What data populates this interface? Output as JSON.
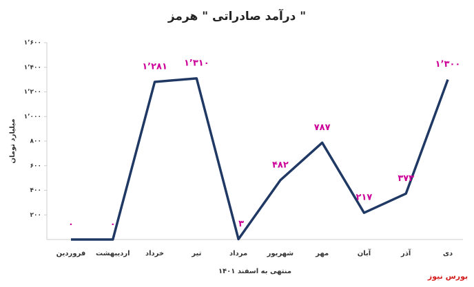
{
  "chart_data": {
    "type": "line",
    "title": "درآمد صادراتی \" هرمز \"",
    "y_label": "میلیارد تومان",
    "x_label": "منتهی به اسفند ۱۴۰۱",
    "source": "بورس نیوز",
    "categories": [
      "فروردین",
      "اردیبهشت",
      "خرداد",
      "تیر",
      "مرداد",
      "شهریور",
      "مهر",
      "آبان",
      "آذر",
      "دی"
    ],
    "series": [
      {
        "name": "درآمد صادراتی",
        "color": "#1f3864",
        "values": [
          0,
          0,
          1281,
          1310,
          3,
          482,
          787,
          217,
          373,
          1300
        ],
        "value_labels": [
          "۰",
          "۰",
          "۱٬۲۸۱",
          "۱٬۳۱۰",
          "۳",
          "۴۸۲",
          "۷۸۷",
          "۲۱۷",
          "۳۷۳",
          "۱٬۳۰۰"
        ]
      }
    ],
    "label_color": "#cc0099",
    "ylim": [
      0,
      1600
    ],
    "yticks": [
      {
        "value": 200,
        "label": "۲۰۰"
      },
      {
        "value": 400,
        "label": "۴۰۰"
      },
      {
        "value": 600,
        "label": "۶۰۰"
      },
      {
        "value": 800,
        "label": "۸۰۰"
      },
      {
        "value": 1000,
        "label": "۱٬۰۰۰"
      },
      {
        "value": 1200,
        "label": "۱٬۲۰۰"
      },
      {
        "value": 1400,
        "label": "۱٬۴۰۰"
      },
      {
        "value": 1600,
        "label": "۱٬۶۰۰"
      }
    ],
    "grid": false
  }
}
